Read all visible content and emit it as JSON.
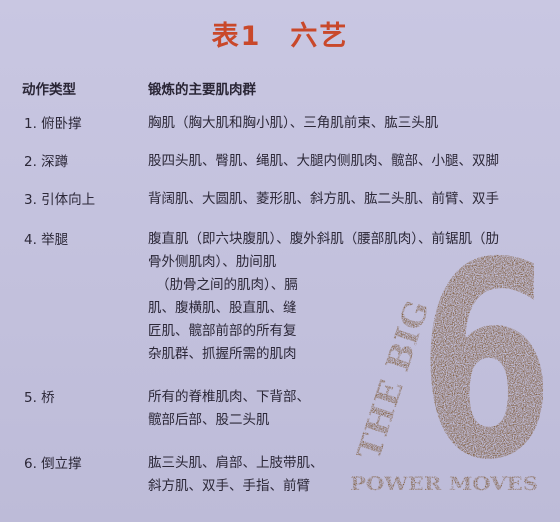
{
  "title": "表1　六艺",
  "headers": {
    "col1": "动作类型",
    "col2": "锻炼的主要肌肉群"
  },
  "rows": [
    {
      "name": "1. 俯卧撑",
      "lines": [
        "胸肌（胸大肌和胸小肌）、三角肌前束、肱三头肌"
      ]
    },
    {
      "name": "2. 深蹲",
      "lines": [
        "股四头肌、臀肌、绳肌、大腿内侧肌肉、髋部、小腿、双脚"
      ]
    },
    {
      "name": "3. 引体向上",
      "lines": [
        "背阔肌、大圆肌、菱形肌、斜方肌、肱二头肌、前臂、双手"
      ]
    },
    {
      "name": "4. 举腿",
      "lines": [
        "腹直肌（即六块腹肌）、腹外斜肌（腰部肌肉）、前锯肌（肋",
        "骨外侧肌肉）、肋间肌",
        "（肋骨之间的肌肉）、膈",
        "肌、腹横肌、股直肌、缝",
        "匠肌、髋部前部的所有复",
        "杂肌群、抓握所需的肌肉"
      ]
    },
    {
      "name": "5. 桥",
      "lines": [
        "所有的脊椎肌肉、下背部、",
        "髋部后部、股二头肌"
      ]
    },
    {
      "name": "6. 倒立撑",
      "lines": [
        "肱三头肌、肩部、上肢带肌、",
        "斜方肌、双手、手指、前臂"
      ]
    }
  ],
  "logo": {
    "vertical": "THE BIG",
    "numeral": "6",
    "caption": "POWER MOVES"
  },
  "colors": {
    "title": "#c9482a",
    "logo": "#7a5530",
    "background": "#c4c2de"
  }
}
